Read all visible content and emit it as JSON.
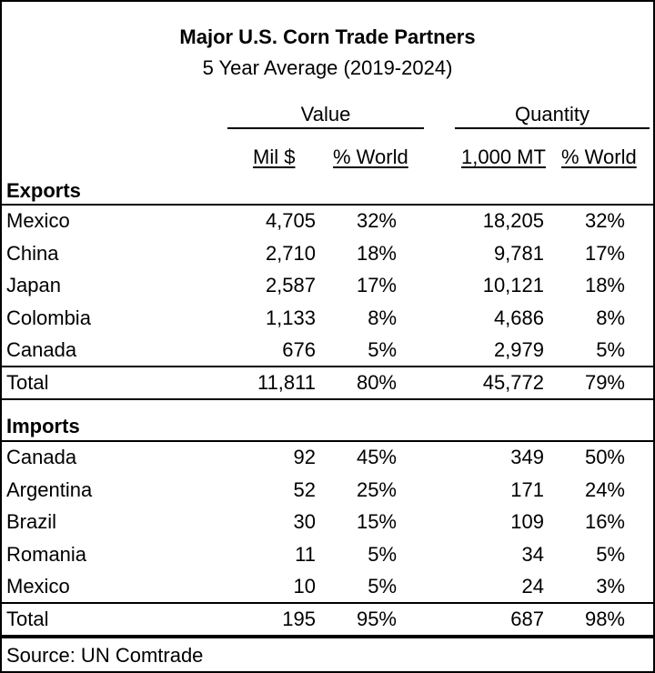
{
  "title": "Major U.S. Corn Trade Partners",
  "subtitle": "5 Year Average (2019-2024)",
  "groups": {
    "value": "Value",
    "quantity": "Quantity"
  },
  "columns": {
    "mil": "Mil $",
    "pct_world_value": "% World",
    "kmt": "1,000 MT",
    "pct_world_qty": "% World"
  },
  "exports": {
    "label": "Exports",
    "rows": [
      {
        "name": "Mexico",
        "value": "4,705",
        "value_pct": "32%",
        "qty": "18,205",
        "qty_pct": "32%"
      },
      {
        "name": "China",
        "value": "2,710",
        "value_pct": "18%",
        "qty": "9,781",
        "qty_pct": "17%"
      },
      {
        "name": "Japan",
        "value": "2,587",
        "value_pct": "17%",
        "qty": "10,121",
        "qty_pct": "18%"
      },
      {
        "name": "Colombia",
        "value": "1,133",
        "value_pct": "8%",
        "qty": "4,686",
        "qty_pct": "8%"
      },
      {
        "name": "Canada",
        "value": "676",
        "value_pct": "5%",
        "qty": "2,979",
        "qty_pct": "5%"
      }
    ],
    "total": {
      "name": "Total",
      "value": "11,811",
      "value_pct": "80%",
      "qty": "45,772",
      "qty_pct": "79%"
    }
  },
  "imports": {
    "label": "Imports",
    "rows": [
      {
        "name": "Canada",
        "value": "92",
        "value_pct": "45%",
        "qty": "349",
        "qty_pct": "50%"
      },
      {
        "name": "Argentina",
        "value": "52",
        "value_pct": "25%",
        "qty": "171",
        "qty_pct": "24%"
      },
      {
        "name": "Brazil",
        "value": "30",
        "value_pct": "15%",
        "qty": "109",
        "qty_pct": "16%"
      },
      {
        "name": "Romania",
        "value": "11",
        "value_pct": "5%",
        "qty": "34",
        "qty_pct": "5%"
      },
      {
        "name": "Mexico",
        "value": "10",
        "value_pct": "5%",
        "qty": "24",
        "qty_pct": "3%"
      }
    ],
    "total": {
      "name": "Total",
      "value": "195",
      "value_pct": "95%",
      "qty": "687",
      "qty_pct": "98%"
    }
  },
  "source": "Source: UN Comtrade"
}
